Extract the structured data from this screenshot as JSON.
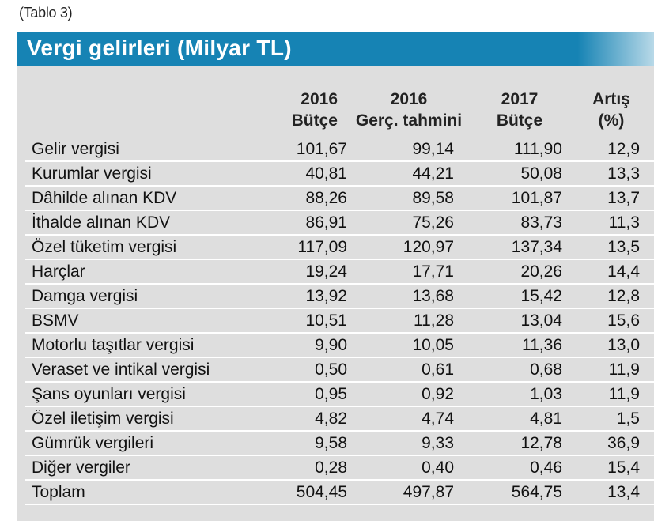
{
  "caption": "(Tablo 3)",
  "title": "Vergi gelirleri (Milyar TL)",
  "headers": [
    {
      "line1": "2016",
      "line2": "Bütçe"
    },
    {
      "line1": "2016",
      "line2": "Gerç. tahmini"
    },
    {
      "line1": "2017",
      "line2": "Bütçe"
    },
    {
      "line1": "Artış",
      "line2": "(%)"
    }
  ],
  "rows": [
    {
      "label": "Gelir vergisi",
      "v1": "101,67",
      "v2": "99,14",
      "v3": "111,90",
      "v4": "12,9"
    },
    {
      "label": "Kurumlar vergisi",
      "v1": "40,81",
      "v2": "44,21",
      "v3": "50,08",
      "v4": "13,3"
    },
    {
      "label": "Dâhilde alınan KDV",
      "v1": "88,26",
      "v2": "89,58",
      "v3": "101,87",
      "v4": "13,7"
    },
    {
      "label": "İthalde alınan KDV",
      "v1": "86,91",
      "v2": "75,26",
      "v3": "83,73",
      "v4": "11,3"
    },
    {
      "label": "Özel tüketim vergisi",
      "v1": "117,09",
      "v2": "120,97",
      "v3": "137,34",
      "v4": "13,5"
    },
    {
      "label": "Harçlar",
      "v1": "19,24",
      "v2": "17,71",
      "v3": "20,26",
      "v4": "14,4"
    },
    {
      "label": "Damga vergisi",
      "v1": "13,92",
      "v2": "13,68",
      "v3": "15,42",
      "v4": "12,8"
    },
    {
      "label": "BSMV",
      "v1": "10,51",
      "v2": "11,28",
      "v3": "13,04",
      "v4": "15,6"
    },
    {
      "label": "Motorlu taşıtlar vergisi",
      "v1": "9,90",
      "v2": "10,05",
      "v3": "11,36",
      "v4": "13,0"
    },
    {
      "label": "Veraset ve intikal vergisi",
      "v1": "0,50",
      "v2": "0,61",
      "v3": "0,68",
      "v4": "11,9"
    },
    {
      "label": "Şans oyunları vergisi",
      "v1": "0,95",
      "v2": "0,92",
      "v3": "1,03",
      "v4": "11,9"
    },
    {
      "label": "Özel iletişim vergisi",
      "v1": "4,82",
      "v2": "4,74",
      "v3": "4,81",
      "v4": "1,5"
    },
    {
      "label": "Gümrük vergileri",
      "v1": "9,58",
      "v2": "9,33",
      "v3": "12,78",
      "v4": "36,9"
    },
    {
      "label": "Diğer vergiler",
      "v1": "0,28",
      "v2": "0,40",
      "v3": "0,46",
      "v4": "15,4"
    },
    {
      "label": "Toplam",
      "v1": "504,45",
      "v2": "497,87",
      "v3": "564,75",
      "v4": "13,4"
    }
  ],
  "colors": {
    "title_bar": "#1683b4",
    "table_bg": "#dedede",
    "row_divider": "#ffffff"
  }
}
